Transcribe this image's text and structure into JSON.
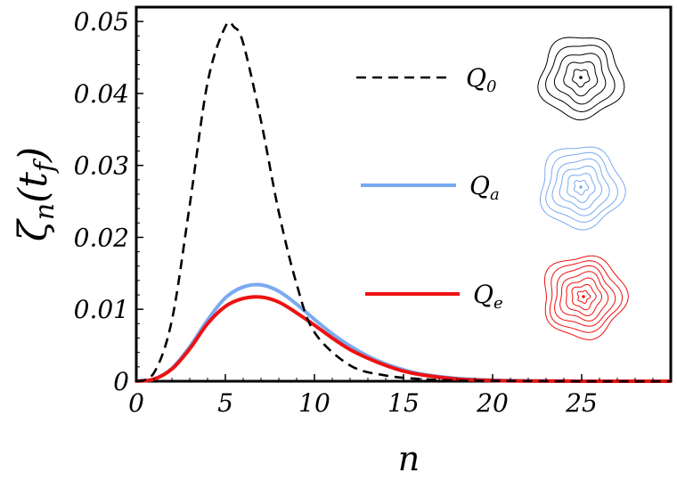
{
  "chart_data": {
    "type": "line",
    "xlabel": "n",
    "ylabel": "ζn(tf)",
    "xlim": [
      0,
      30
    ],
    "ylim": [
      0,
      0.052
    ],
    "x_ticks": [
      "0",
      "5",
      "10",
      "15",
      "20",
      "25"
    ],
    "y_ticks": [
      "0",
      "0.01",
      "0.02",
      "0.03",
      "0.04",
      "0.05"
    ],
    "grid": false,
    "legend_position": "right",
    "series": [
      {
        "name": "Q0",
        "label_main": "Q",
        "label_sub": "0",
        "color": "#000000",
        "style": "dashed",
        "x": [
          0,
          1,
          2,
          3,
          4,
          5,
          5.5,
          6,
          7,
          8,
          9,
          10,
          12,
          14,
          16,
          18,
          20,
          25,
          30
        ],
        "y": [
          0,
          0.0012,
          0.0085,
          0.0245,
          0.0415,
          0.0493,
          0.0492,
          0.047,
          0.0362,
          0.0235,
          0.0135,
          0.0068,
          0.0022,
          0.0008,
          0.0003,
          0.0001,
          5e-05,
          0,
          0
        ]
      },
      {
        "name": "Qa",
        "label_main": "Q",
        "label_sub": "a",
        "color": "#7aaaf0",
        "style": "solid",
        "x": [
          0,
          1,
          2,
          3,
          4,
          5,
          6,
          7,
          8,
          9,
          10,
          11,
          12,
          13,
          14,
          15,
          16,
          18,
          20,
          22,
          25,
          30
        ],
        "y": [
          0,
          0.0003,
          0.0018,
          0.0048,
          0.0085,
          0.0116,
          0.0131,
          0.0134,
          0.0125,
          0.0107,
          0.0086,
          0.0066,
          0.0049,
          0.0035,
          0.0024,
          0.0016,
          0.001,
          0.0004,
          0.00015,
          5e-05,
          0,
          0
        ]
      },
      {
        "name": "Qe",
        "label_main": "Q",
        "label_sub": "e",
        "color": "#ee1111",
        "style": "solid",
        "x": [
          0,
          1,
          2,
          3,
          4,
          5,
          6,
          7,
          8,
          9,
          10,
          11,
          12,
          13,
          14,
          15,
          16,
          18,
          20,
          22,
          25,
          30
        ],
        "y": [
          0,
          0.0003,
          0.0017,
          0.0045,
          0.008,
          0.0104,
          0.0115,
          0.0117,
          0.011,
          0.0095,
          0.0078,
          0.006,
          0.0044,
          0.0032,
          0.0022,
          0.0014,
          0.0009,
          0.0003,
          0.0001,
          3e-05,
          0,
          0
        ]
      }
    ],
    "contour_icons": [
      {
        "name": "Q0-contour-icon",
        "color": "#000000",
        "rings": 5
      },
      {
        "name": "Qa-contour-icon",
        "color": "#7aaaf0",
        "rings": 6
      },
      {
        "name": "Qe-contour-icon",
        "color": "#ee1111",
        "rings": 7
      }
    ]
  }
}
